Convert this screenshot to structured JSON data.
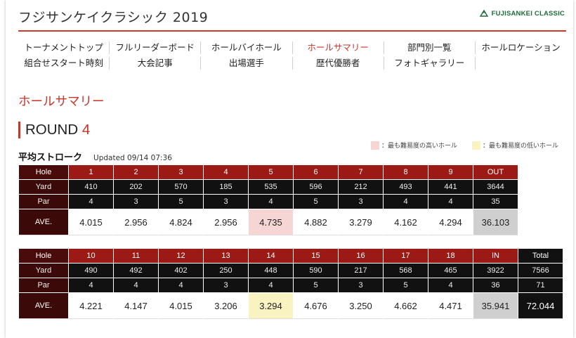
{
  "header": {
    "site_title": "フジサンケイクラシック 2019",
    "brand": "FUJISANKEI CLASSIC"
  },
  "nav": {
    "row1": [
      "トーナメントトップ",
      "フルリーダーボード",
      "ホールバイホール",
      "ホールサマリー",
      "部門別一覧",
      "ホールロケーション"
    ],
    "row2": [
      "組合せスタート時刻",
      "大会記事",
      "出場選手",
      "歴代優勝者",
      "フォトギャラリー",
      ""
    ],
    "active": "ホールサマリー"
  },
  "page": {
    "section_title": "ホールサマリー",
    "round_label": "ROUND",
    "round_number": "4",
    "subtitle": "平均ストローク",
    "updated": "Updated 09/14 07:36",
    "legend_hard": "：最も難易度の高いホール",
    "legend_easy": "：最も難易度の低いホール"
  },
  "colors": {
    "accent": "#c8342a",
    "header_red": "#9b1a16",
    "hard": "#f6d5d5",
    "easy": "#f9f3c2",
    "subtotal": "#cfcfcf"
  },
  "front": {
    "labels": {
      "hole": "Hole",
      "yard": "Yard",
      "par": "Par",
      "ave": "AVE."
    },
    "holes": [
      "1",
      "2",
      "3",
      "4",
      "5",
      "6",
      "7",
      "8",
      "9",
      "OUT"
    ],
    "yards": [
      "410",
      "202",
      "570",
      "185",
      "535",
      "596",
      "212",
      "493",
      "441",
      "3644"
    ],
    "pars": [
      "4",
      "3",
      "5",
      "3",
      "4",
      "5",
      "3",
      "4",
      "4",
      "35"
    ],
    "aves": [
      "4.015",
      "2.956",
      "4.824",
      "2.956",
      "4.735",
      "4.882",
      "3.279",
      "4.162",
      "4.294",
      "36.103"
    ]
  },
  "back": {
    "labels": {
      "hole": "Hole",
      "yard": "Yard",
      "par": "Par",
      "ave": "AVE."
    },
    "holes": [
      "10",
      "11",
      "12",
      "13",
      "14",
      "15",
      "16",
      "17",
      "18",
      "IN",
      "Total"
    ],
    "yards": [
      "490",
      "492",
      "402",
      "250",
      "448",
      "590",
      "217",
      "568",
      "465",
      "3922",
      "7566"
    ],
    "pars": [
      "4",
      "4",
      "4",
      "3",
      "4",
      "5",
      "3",
      "5",
      "4",
      "36",
      "71"
    ],
    "aves": [
      "4.221",
      "4.147",
      "4.015",
      "3.206",
      "3.294",
      "4.676",
      "3.250",
      "4.662",
      "4.471",
      "35.941",
      "72.044"
    ]
  }
}
